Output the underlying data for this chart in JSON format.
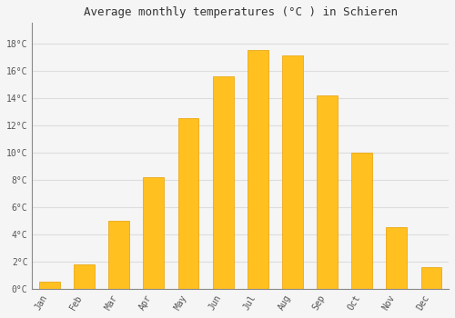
{
  "months": [
    "Jan",
    "Feb",
    "Mar",
    "Apr",
    "May",
    "Jun",
    "Jul",
    "Aug",
    "Sep",
    "Oct",
    "Nov",
    "Dec"
  ],
  "temperatures": [
    0.5,
    1.8,
    5.0,
    8.2,
    12.5,
    15.6,
    17.5,
    17.1,
    14.2,
    10.0,
    4.5,
    1.6
  ],
  "bar_color": "#FFC020",
  "bar_edge_color": "#E8A000",
  "title": "Average monthly temperatures (°C ) in Schieren",
  "ytick_labels": [
    "0°C",
    "2°C",
    "4°C",
    "6°C",
    "8°C",
    "10°C",
    "12°C",
    "14°C",
    "16°C",
    "18°C"
  ],
  "ytick_values": [
    0,
    2,
    4,
    6,
    8,
    10,
    12,
    14,
    16,
    18
  ],
  "ylim": [
    0,
    19.5
  ],
  "background_color": "#f5f5f5",
  "plot_bg_color": "#f5f5f5",
  "grid_color": "#dddddd",
  "title_fontsize": 9,
  "tick_fontsize": 7,
  "font_family": "monospace"
}
